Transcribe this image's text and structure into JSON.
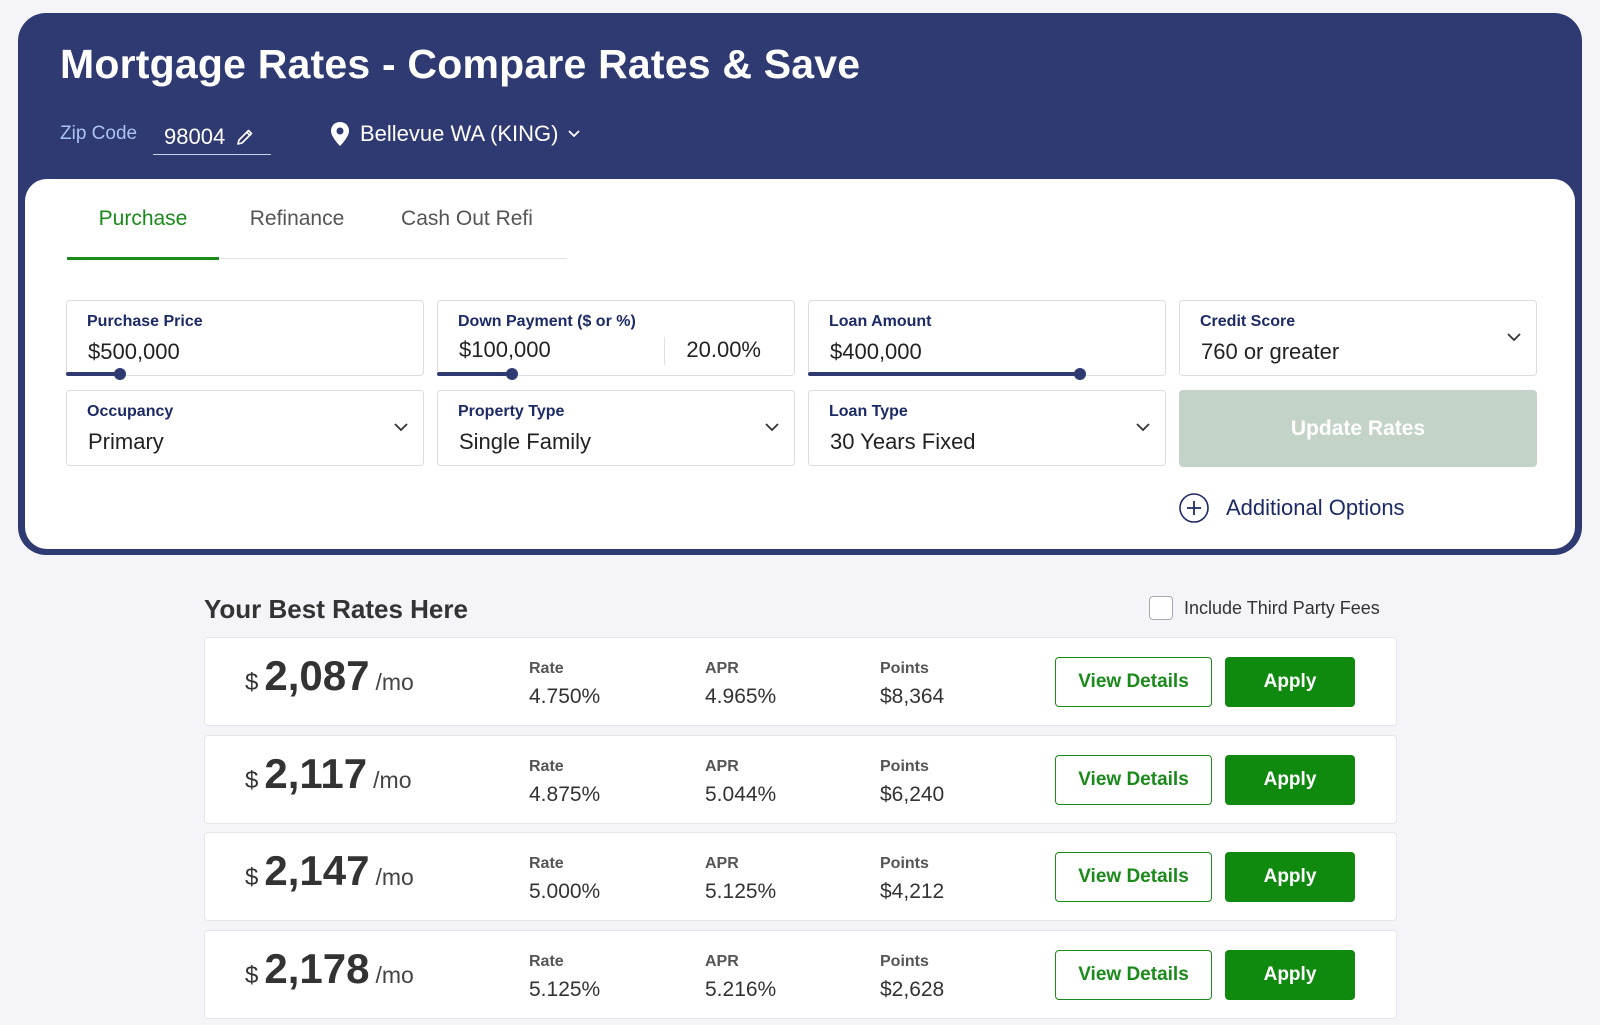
{
  "header": {
    "title": "Mortgage Rates - Compare Rates & Save",
    "zip_label": "Zip Code",
    "zip_value": "98004",
    "location": "Bellevue WA (KING)"
  },
  "tabs": [
    {
      "label": "Purchase",
      "active": true
    },
    {
      "label": "Refinance",
      "active": false
    },
    {
      "label": "Cash Out Refi",
      "active": false
    }
  ],
  "form": {
    "purchase_price": {
      "label": "Purchase Price",
      "value": "$500,000",
      "slider_fraction": 0.15
    },
    "down_payment": {
      "label": "Down Payment ($ or %)",
      "value": "$100,000",
      "percent": "20.00%",
      "slider_fraction": 0.21
    },
    "loan_amount": {
      "label": "Loan Amount",
      "value": "$400,000",
      "slider_fraction": 0.76
    },
    "credit_score": {
      "label": "Credit Score",
      "value": "760 or greater"
    },
    "occupancy": {
      "label": "Occupancy",
      "value": "Primary"
    },
    "property_type": {
      "label": "Property Type",
      "value": "Single Family"
    },
    "loan_type": {
      "label": "Loan Type",
      "value": "30 Years Fixed"
    },
    "update_button": "Update Rates",
    "additional_options": "Additional Options"
  },
  "results": {
    "title": "Your Best Rates Here",
    "third_party_label": "Include Third Party Fees",
    "third_party_checked": false,
    "col_rate": "Rate",
    "col_apr": "APR",
    "col_points": "Points",
    "currency": "$",
    "per_month": "/mo",
    "view_details_label": "View Details",
    "apply_label": "Apply",
    "rows": [
      {
        "payment": "2,087",
        "rate": "4.750%",
        "apr": "4.965%",
        "points": "$8,364"
      },
      {
        "payment": "2,117",
        "rate": "4.875%",
        "apr": "5.044%",
        "points": "$6,240"
      },
      {
        "payment": "2,147",
        "rate": "5.000%",
        "apr": "5.125%",
        "points": "$4,212"
      },
      {
        "payment": "2,178",
        "rate": "5.125%",
        "apr": "5.216%",
        "points": "$2,628"
      }
    ]
  },
  "colors": {
    "navy": "#2e3a71",
    "green": "#0f8a0f",
    "update_disabled": "#c4d3c8"
  }
}
